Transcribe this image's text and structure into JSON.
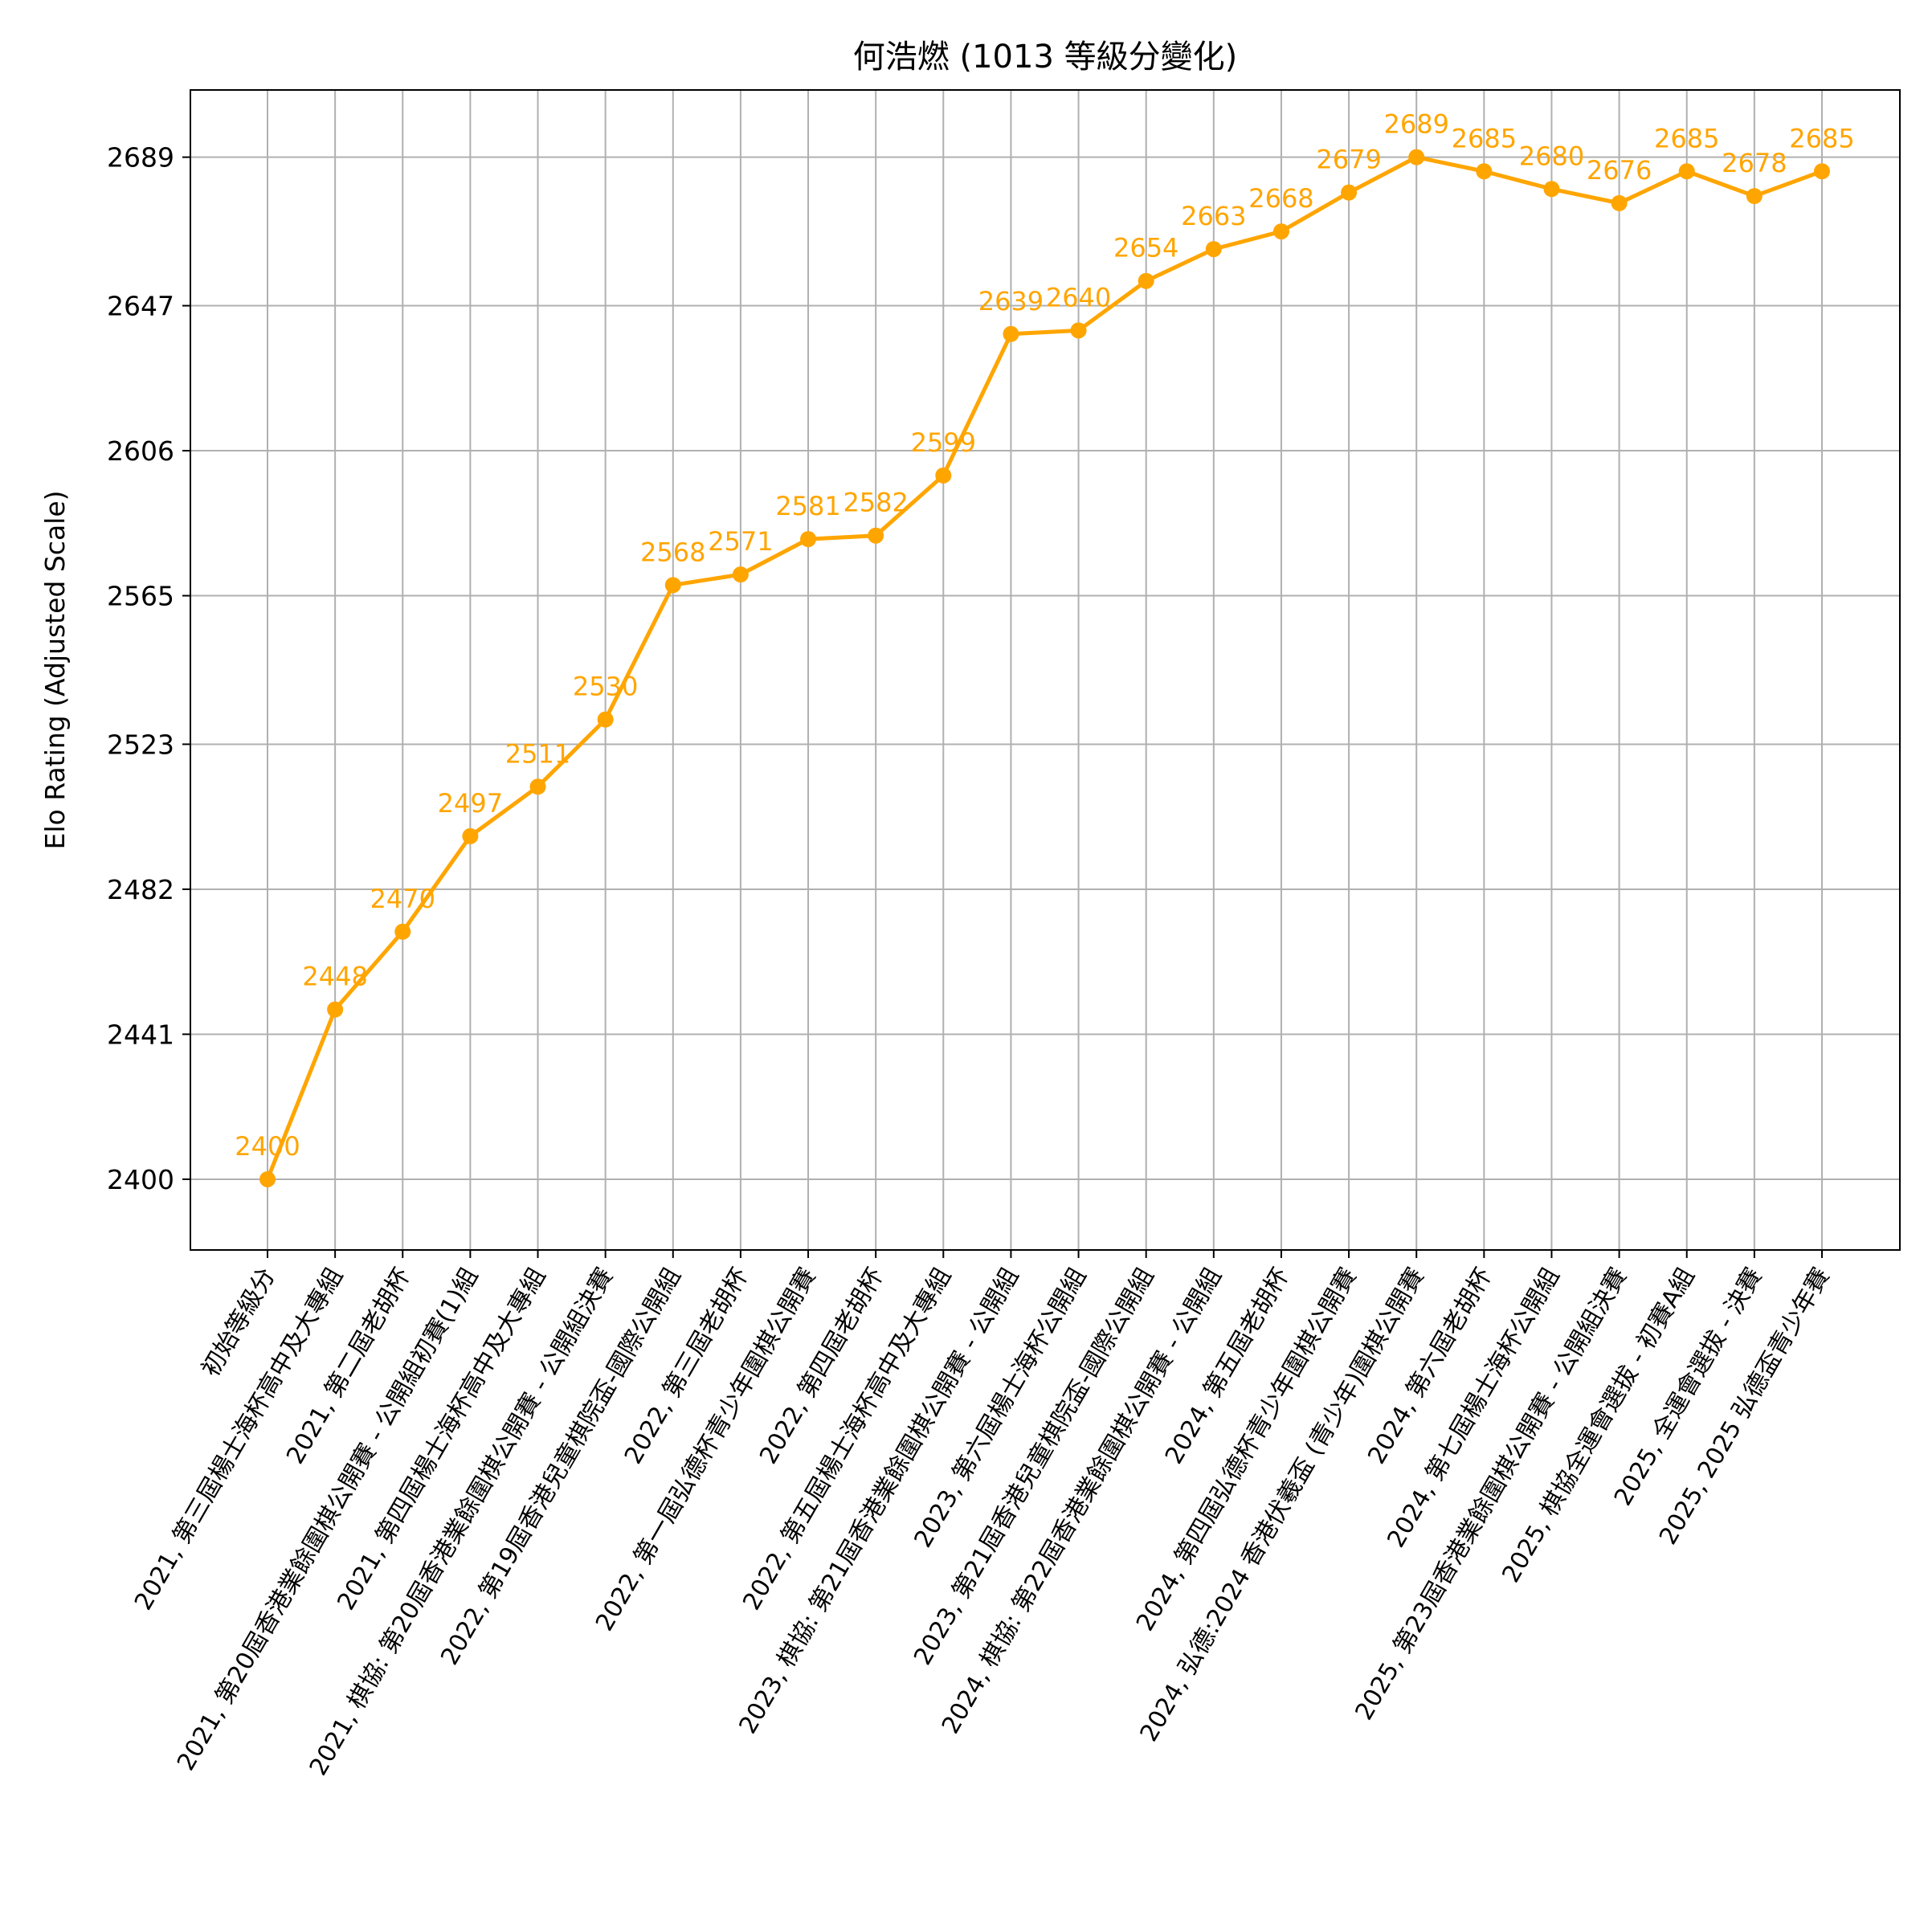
{
  "chart_data": {
    "type": "line",
    "title": "何浩燃 (1013 等級分變化)",
    "xlabel": "",
    "ylabel": "Elo Rating (Adjusted Scale)",
    "grid": true,
    "legend": "none",
    "color": "#FFA500",
    "ylim": [
      2380,
      2708
    ],
    "yticks": [
      2400,
      2441,
      2482,
      2523,
      2565,
      2606,
      2647,
      2689
    ],
    "categories": [
      "初始等級分",
      "2021, 第三屆楊士海杯高中及大專組",
      "2021, 第二屆老胡杯",
      "2021, 第20屆香港業餘圍棋公開賽 - 公開組初賽(1)組",
      "2021, 第四屆楊士海杯高中及大專組",
      "2021, 棋協: 第20屆香港業餘圍棋公開賽 - 公開組決賽",
      "2022, 第19屆香港兒童棋院盃-國際公開組",
      "2022, 第三屆老胡杯",
      "2022, 第一屆弘德杯青少年圍棋公開賽",
      "2022, 第四屆老胡杯",
      "2022, 第五屆楊士海杯高中及大專組",
      "2023, 棋協: 第21屆香港業餘圍棋公開賽 - 公開組",
      "2023, 第六屆楊士海杯公開組",
      "2023, 第21屆香港兒童棋院盃-國際公開組",
      "2024, 棋協: 第22屆香港業餘圍棋公開賽 - 公開組",
      "2024, 第五屆老胡杯",
      "2024, 第四屆弘德杯青少年圍棋公開賽",
      "2024, 弘德:2024 香港伏羲盃 (青少年)圍棋公開賽",
      "2024, 第六屆老胡杯",
      "2024, 第七屆楊士海杯公開組",
      "2025, 第23屆香港業餘圍棋公開賽 - 公開組決賽",
      "2025, 棋協全運會選拔 - 初賽A組",
      "2025, 全運會選拔 - 決賽",
      "2025, 2025 弘德盃青少年賽"
    ],
    "values": [
      2400,
      2448,
      2470,
      2497,
      2511,
      2530,
      2568,
      2571,
      2581,
      2582,
      2599,
      2639,
      2640,
      2654,
      2663,
      2668,
      2679,
      2689,
      2685,
      2680,
      2676,
      2685,
      2678,
      2685
    ],
    "labels": [
      "2400",
      "2448",
      "2470",
      "2497",
      "2511",
      "2530",
      "2568",
      "2571",
      "2581",
      "2582",
      "2599",
      "2639",
      "2640",
      "2654",
      "2663",
      "2668",
      "2679",
      "2689",
      "2685",
      "2680",
      "2676",
      "2685",
      "2678",
      "2685"
    ]
  }
}
